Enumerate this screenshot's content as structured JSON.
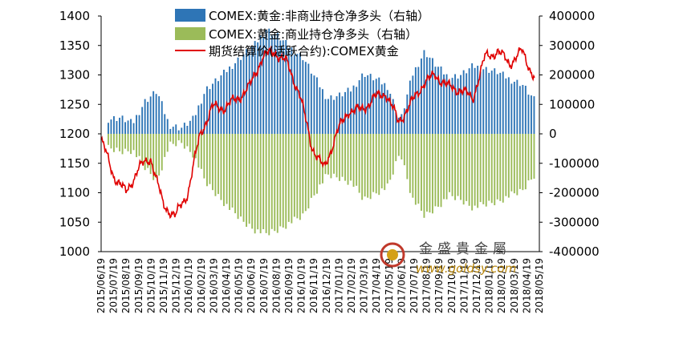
{
  "chart_data": {
    "type": "bar+line",
    "title": "",
    "legend": [
      {
        "name": "COMEX:黄金:非商业持仓净多头（右轴）",
        "color": "#2e75b6",
        "kind": "bar"
      },
      {
        "name": "COMEX:黄金:商业持仓净多头（右轴）",
        "color": "#9bbb59",
        "kind": "bar"
      },
      {
        "name": "期货结算价(活跃合约):COMEX黄金",
        "color": "#e00000",
        "kind": "line"
      }
    ],
    "legend_position": "top",
    "y_left": {
      "min": 1000,
      "max": 1400,
      "ticks": [
        "1000",
        "1050",
        "1100",
        "1150",
        "1200",
        "1250",
        "1300",
        "1350",
        "1400"
      ]
    },
    "y_right": {
      "min": -400000,
      "max": 400000,
      "ticks": [
        "-400000",
        "-300000",
        "-200000",
        "-100000",
        "0",
        "100000",
        "200000",
        "300000",
        "400000"
      ]
    },
    "x_ticks": [
      "2015/06/19",
      "2015/07/19",
      "2015/08/19",
      "2015/09/19",
      "2015/10/19",
      "2015/11/19",
      "2015/12/19",
      "2016/01/19",
      "2016/02/19",
      "2016/03/19",
      "2016/04/19",
      "2016/05/19",
      "2016/06/19",
      "2016/07/19",
      "2016/08/19",
      "2016/09/19",
      "2016/10/19",
      "2016/11/19",
      "2016/12/19",
      "2017/01/19",
      "2017/02/19",
      "2017/03/19",
      "2017/04/19",
      "2017/05/19",
      "2017/06/19",
      "2017/07/19",
      "2017/08/19",
      "2017/09/19",
      "2017/10/19",
      "2017/11/19",
      "2017/12/19",
      "2018/01/19",
      "2018/02/19",
      "2018/03/19",
      "2018/04/19",
      "2018/05/19"
    ],
    "noncommercial_monthly": [
      50000,
      55000,
      35000,
      110000,
      145000,
      30000,
      20000,
      50000,
      150000,
      185000,
      225000,
      265000,
      300000,
      355000,
      330000,
      290000,
      260000,
      190000,
      120000,
      130000,
      150000,
      205000,
      185000,
      160000,
      40000,
      200000,
      280000,
      230000,
      190000,
      200000,
      230000,
      220000,
      210000,
      185000,
      170000,
      115000
    ],
    "commercial_monthly": [
      -50000,
      -60000,
      -55000,
      -115000,
      -160000,
      -40000,
      -30000,
      -70000,
      -165000,
      -210000,
      -255000,
      -295000,
      -325000,
      -340000,
      -325000,
      -300000,
      -280000,
      -200000,
      -140000,
      -150000,
      -165000,
      -225000,
      -200000,
      -180000,
      -60000,
      -220000,
      -280000,
      -250000,
      -210000,
      -225000,
      -250000,
      -240000,
      -230000,
      -210000,
      -195000,
      -140000
    ],
    "price_monthly": [
      1190,
      1130,
      1100,
      1140,
      1160,
      1080,
      1060,
      1100,
      1200,
      1245,
      1245,
      1260,
      1280,
      1330,
      1340,
      1320,
      1270,
      1180,
      1140,
      1200,
      1240,
      1240,
      1260,
      1270,
      1220,
      1250,
      1285,
      1300,
      1280,
      1275,
      1260,
      1330,
      1340,
      1320,
      1340,
      1295
    ]
  },
  "watermark": {
    "brand": "金盛貴金屬",
    "url": "www.goldsy.com"
  },
  "colors": {
    "noncommercial": "#2e75b6",
    "commercial": "#9bbb59",
    "price": "#e00000"
  }
}
